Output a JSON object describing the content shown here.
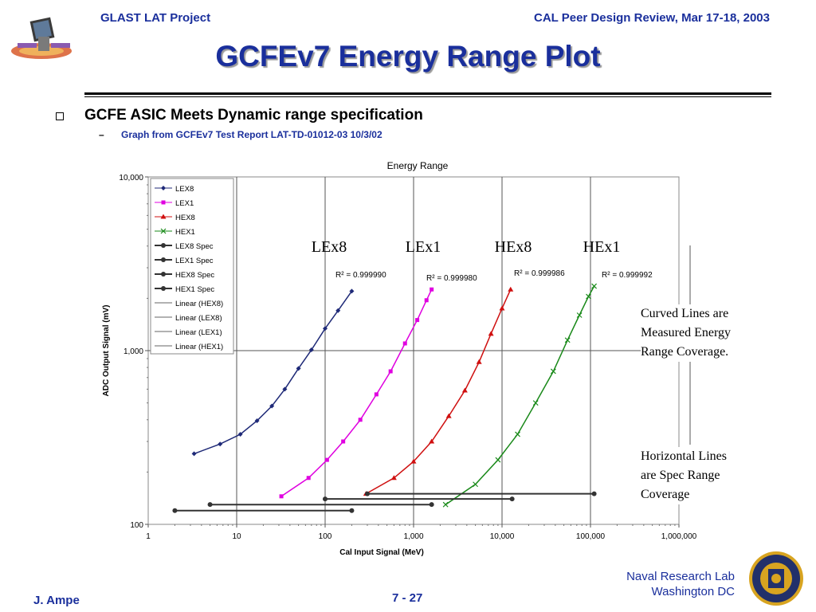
{
  "header": {
    "left": "GLAST LAT Project",
    "right": "CAL Peer Design Review, Mar 17-18, 2003"
  },
  "title": "GCFEv7 Energy Range Plot",
  "bullets": {
    "main": "GCFE ASIC Meets Dynamic range specification",
    "dash": "–",
    "sub": "Graph from GCFEv7 Test Report LAT-TD-01012-03 10/3/02"
  },
  "annotations": {
    "curved": [
      "Curved Lines are",
      "Measured Energy",
      "Range Coverage."
    ],
    "horizontal": [
      "Horizontal Lines",
      "are Spec Range",
      "Coverage"
    ]
  },
  "footer": {
    "author": "J. Ampe",
    "page": "7 - 27",
    "org_line1": "Naval Research Lab",
    "org_line2": "Washington DC"
  },
  "colors": {
    "heading": "#1a2f9c",
    "LEX8": "#1f2a78",
    "LEX1": "#e000e0",
    "HEX8": "#d01010",
    "HEX1": "#1a8a1a",
    "LEX8_spec": "#1f2a8a",
    "LEX1_spec": "#ff40ff",
    "HEX8_spec": "#e02020",
    "HEX1_spec": "#1a9a1a"
  },
  "chart_data": {
    "type": "line",
    "title": "Energy Range",
    "xlabel": "Cal Input Signal (MeV)",
    "ylabel": "ADC Output Signal (mV)",
    "x_scale": "log",
    "y_scale": "log",
    "xlim": [
      1,
      1000000
    ],
    "ylim": [
      100,
      10000
    ],
    "x_ticks": [
      "1",
      "10",
      "100",
      "1,000",
      "10,000",
      "100,000",
      "1,000,000"
    ],
    "y_ticks": [
      "100",
      "1,000",
      "10,000"
    ],
    "legend_position": "top-left",
    "legend": [
      "LEX8",
      "LEX1",
      "HEX8",
      "HEX1",
      "LEX8 Spec",
      "LEX1 Spec",
      "HEX8 Spec",
      "HEX1 Spec",
      "Linear (HEX8)",
      "Linear (LEX8)",
      "Linear (LEX1)",
      "Linear (HEX1)"
    ],
    "range_labels": [
      "LEx8",
      "LEx1",
      "HEx8",
      "HEx1"
    ],
    "r_squared": [
      "R² = 0.999990",
      "R² = 0.999980",
      "R² = 0.999986",
      "R² = 0.999992"
    ],
    "series": [
      {
        "name": "LEX8",
        "marker": "diamond",
        "x": [
          3.3,
          6.5,
          11,
          17,
          25,
          35,
          50,
          70,
          100,
          140,
          200
        ],
        "y": [
          255,
          290,
          330,
          395,
          480,
          600,
          790,
          1010,
          1340,
          1700,
          2200
        ]
      },
      {
        "name": "LEX1",
        "marker": "square",
        "x": [
          32,
          65,
          105,
          160,
          250,
          380,
          550,
          800,
          1100,
          1400,
          1600
        ],
        "y": [
          145,
          185,
          235,
          300,
          400,
          560,
          760,
          1100,
          1500,
          1950,
          2250
        ]
      },
      {
        "name": "HEX8",
        "marker": "triangle",
        "x": [
          290,
          600,
          1000,
          1600,
          2500,
          3800,
          5500,
          7500,
          10000,
          12500
        ],
        "y": [
          150,
          185,
          230,
          300,
          420,
          590,
          860,
          1250,
          1750,
          2250
        ]
      },
      {
        "name": "HEX1",
        "marker": "x",
        "x": [
          2300,
          5000,
          9000,
          15000,
          24000,
          38000,
          55000,
          75000,
          95000,
          110000
        ],
        "y": [
          130,
          170,
          235,
          330,
          500,
          760,
          1150,
          1600,
          2050,
          2350
        ]
      },
      {
        "name": "LEX8 Spec",
        "x": [
          2,
          200
        ],
        "y": [
          120,
          120
        ]
      },
      {
        "name": "LEX1 Spec",
        "x": [
          5,
          1600
        ],
        "y": [
          130,
          130
        ]
      },
      {
        "name": "HEX8 Spec",
        "x": [
          100,
          13000
        ],
        "y": [
          140,
          140
        ]
      },
      {
        "name": "HEX1 Spec",
        "x": [
          300,
          110000
        ],
        "y": [
          150,
          150
        ]
      }
    ]
  }
}
